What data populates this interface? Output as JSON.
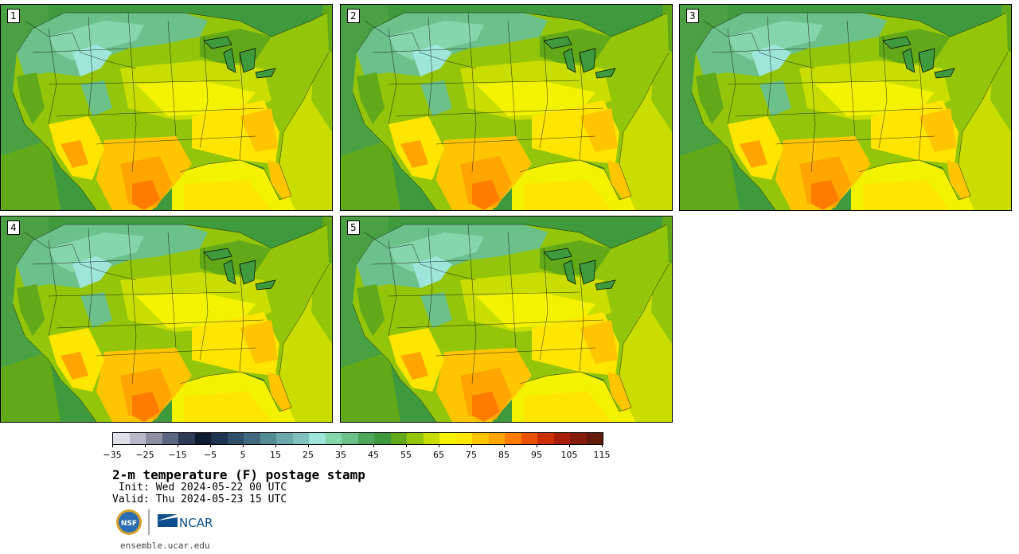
{
  "panels": [
    {
      "label": "1"
    },
    {
      "label": "2"
    },
    {
      "label": "3"
    },
    {
      "label": "4"
    },
    {
      "label": "5"
    }
  ],
  "colorbar": {
    "colors": [
      "#dfe1e8",
      "#b7bac6",
      "#8b90a2",
      "#5d6680",
      "#2e3956",
      "#0d1a30",
      "#1e3450",
      "#2f4f69",
      "#41687c",
      "#528b91",
      "#6aa8ab",
      "#7fc0bd",
      "#9ee5da",
      "#86d6ad",
      "#6cc089",
      "#4fa65a",
      "#3f9a3e",
      "#62a919",
      "#93c50a",
      "#c9de00",
      "#f3f300",
      "#ffe600",
      "#ffc600",
      "#ffa500",
      "#ff7c00",
      "#eb5000",
      "#cc2f00",
      "#a81e0a",
      "#851d0c",
      "#641b0e"
    ],
    "tick_labels": [
      "−35",
      "−25",
      "−15",
      "−5",
      "5",
      "15",
      "25",
      "35",
      "45",
      "55",
      "65",
      "75",
      "85",
      "95",
      "105",
      "115"
    ]
  },
  "title": "2-m temperature (F) postage stamp",
  "init_line": " Init: Wed 2024-05-22 00 UTC",
  "valid_line": "Valid: Thu 2024-05-23 15 UTC",
  "logos": {
    "nsf": "NSF",
    "ncar": "NCAR"
  },
  "url": "ensemble.ucar.edu"
}
